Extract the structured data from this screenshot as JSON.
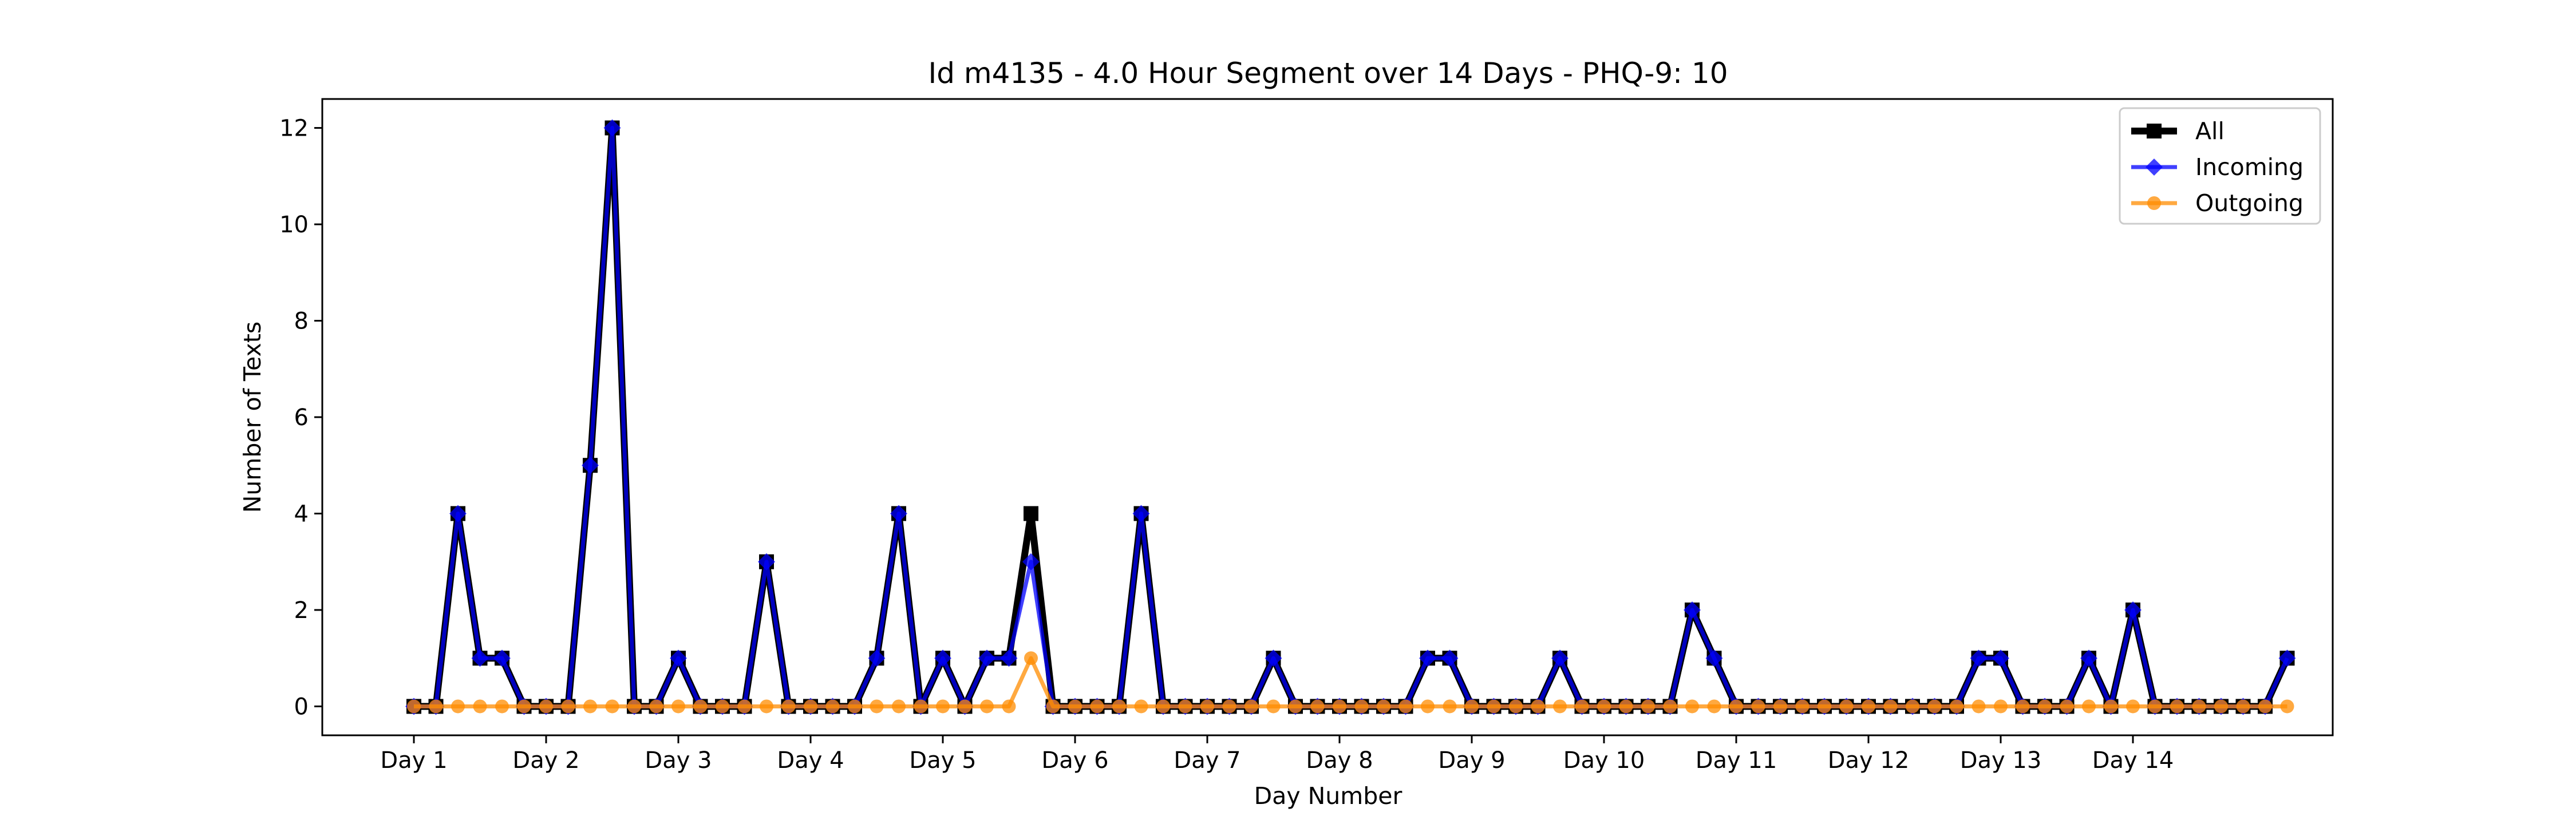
{
  "chart_data": {
    "type": "line",
    "title": "Id m4135 - 4.0 Hour Segment over 14 Days - PHQ-9: 10",
    "xlabel": "Day Number",
    "ylabel": "Number of Texts",
    "x_tick_labels": [
      "Day 1",
      "Day 2",
      "Day 3",
      "Day 4",
      "Day 5",
      "Day 6",
      "Day 7",
      "Day 8",
      "Day 9",
      "Day 10",
      "Day 11",
      "Day 12",
      "Day 13",
      "Day 14"
    ],
    "y_ticks": [
      0,
      2,
      4,
      6,
      8,
      10,
      12
    ],
    "ylim": [
      -0.6,
      12.6
    ],
    "segments_per_day": 6,
    "legend_position": "upper right",
    "grid": false,
    "series": [
      {
        "name": "All",
        "color": "#000000",
        "marker": "square",
        "values": [
          0,
          0,
          4,
          1,
          1,
          0,
          0,
          0,
          5,
          12,
          0,
          0,
          1,
          0,
          0,
          0,
          3,
          0,
          0,
          0,
          0,
          1,
          4,
          0,
          1,
          0,
          1,
          1,
          4,
          0,
          0,
          0,
          0,
          4,
          0,
          0,
          0,
          0,
          0,
          1,
          0,
          0,
          0,
          0,
          0,
          0,
          1,
          1,
          0,
          0,
          0,
          0,
          1,
          0,
          0,
          0,
          0,
          0,
          2,
          1,
          0,
          0,
          0,
          0,
          0,
          0,
          0,
          0,
          0,
          0,
          0,
          1,
          1,
          0,
          0,
          0,
          1,
          0,
          2,
          0,
          0,
          0,
          0,
          0,
          0,
          1
        ]
      },
      {
        "name": "Incoming",
        "color": "#0000ff",
        "marker": "diamond",
        "values": [
          0,
          0,
          4,
          1,
          1,
          0,
          0,
          0,
          5,
          12,
          0,
          0,
          1,
          0,
          0,
          0,
          3,
          0,
          0,
          0,
          0,
          1,
          4,
          0,
          1,
          0,
          1,
          1,
          3,
          0,
          0,
          0,
          0,
          4,
          0,
          0,
          0,
          0,
          0,
          1,
          0,
          0,
          0,
          0,
          0,
          0,
          1,
          1,
          0,
          0,
          0,
          0,
          1,
          0,
          0,
          0,
          0,
          0,
          2,
          1,
          0,
          0,
          0,
          0,
          0,
          0,
          0,
          0,
          0,
          0,
          0,
          1,
          1,
          0,
          0,
          0,
          1,
          0,
          2,
          0,
          0,
          0,
          0,
          0,
          0,
          1
        ]
      },
      {
        "name": "Outgoing",
        "color": "#ff8c00",
        "marker": "circle",
        "values": [
          0,
          0,
          0,
          0,
          0,
          0,
          0,
          0,
          0,
          0,
          0,
          0,
          0,
          0,
          0,
          0,
          0,
          0,
          0,
          0,
          0,
          0,
          0,
          0,
          0,
          0,
          0,
          0,
          1,
          0,
          0,
          0,
          0,
          0,
          0,
          0,
          0,
          0,
          0,
          0,
          0,
          0,
          0,
          0,
          0,
          0,
          0,
          0,
          0,
          0,
          0,
          0,
          0,
          0,
          0,
          0,
          0,
          0,
          0,
          0,
          0,
          0,
          0,
          0,
          0,
          0,
          0,
          0,
          0,
          0,
          0,
          0,
          0,
          0,
          0,
          0,
          0,
          0,
          0,
          0,
          0,
          0,
          0,
          0,
          0,
          0
        ]
      }
    ]
  }
}
